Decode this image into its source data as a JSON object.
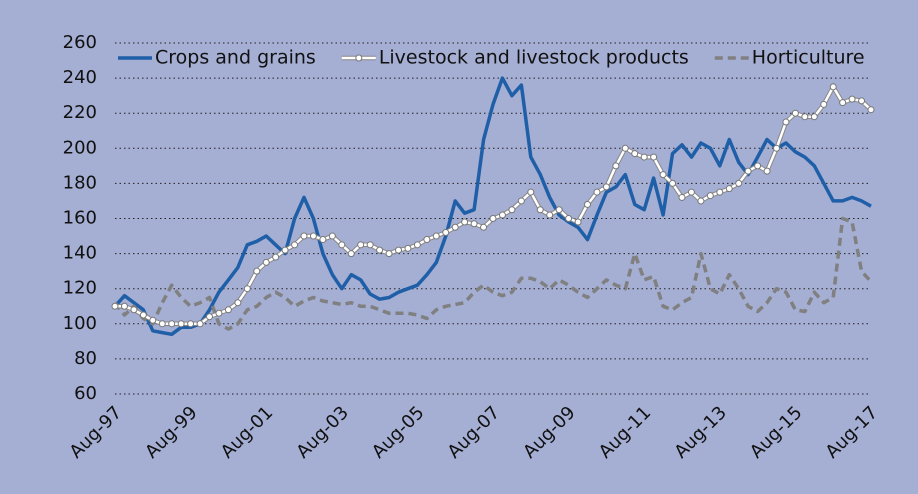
{
  "chart_data": {
    "type": "line",
    "categories": [
      "Aug-97",
      null,
      null,
      null,
      null,
      null,
      null,
      null,
      "Aug-99",
      null,
      null,
      null,
      null,
      null,
      null,
      null,
      "Aug-01",
      null,
      null,
      null,
      null,
      null,
      null,
      null,
      "Aug-03",
      null,
      null,
      null,
      null,
      null,
      null,
      null,
      "Aug-05",
      null,
      null,
      null,
      null,
      null,
      null,
      null,
      "Aug-07",
      null,
      null,
      null,
      null,
      null,
      null,
      null,
      "Aug-09",
      null,
      null,
      null,
      null,
      null,
      null,
      null,
      "Aug-11",
      null,
      null,
      null,
      null,
      null,
      null,
      null,
      "Aug-13",
      null,
      null,
      null,
      null,
      null,
      null,
      null,
      "Aug-15",
      null,
      null,
      null,
      null,
      null,
      null,
      null,
      "Aug-17"
    ],
    "series": [
      {
        "name": "Crops and grains",
        "color": "#1f5fa8",
        "values": [
          110,
          116,
          112,
          108,
          96,
          95,
          94,
          98,
          98,
          100,
          108,
          118,
          125,
          132,
          145,
          147,
          150,
          145,
          140,
          160,
          172,
          160,
          140,
          128,
          120,
          128,
          125,
          117,
          114,
          115,
          118,
          120,
          122,
          128,
          135,
          150,
          170,
          163,
          165,
          205,
          225,
          240,
          230,
          236,
          195,
          185,
          172,
          162,
          158,
          155,
          148,
          162,
          175,
          178,
          185,
          168,
          165,
          183,
          162,
          197,
          202,
          195,
          203,
          200,
          190,
          205,
          192,
          185,
          195,
          205,
          200,
          203,
          198,
          195,
          190,
          180,
          170,
          170,
          172,
          170,
          167
        ]
      },
      {
        "name": "Livestock and livestock products",
        "color": "#ffffff",
        "values": [
          110,
          110,
          108,
          105,
          102,
          100,
          100,
          100,
          100,
          100,
          104,
          106,
          108,
          112,
          120,
          130,
          135,
          138,
          142,
          145,
          150,
          150,
          148,
          150,
          145,
          140,
          145,
          145,
          142,
          140,
          142,
          143,
          145,
          148,
          150,
          152,
          155,
          158,
          157,
          155,
          160,
          162,
          165,
          170,
          175,
          165,
          162,
          165,
          160,
          158,
          168,
          175,
          178,
          190,
          200,
          197,
          195,
          195,
          185,
          180,
          172,
          175,
          170,
          173,
          175,
          177,
          180,
          187,
          190,
          187,
          200,
          215,
          220,
          218,
          218,
          225,
          235,
          226,
          228,
          227,
          222
        ]
      },
      {
        "name": "Horticulture",
        "color": "#808080",
        "values": [
          112,
          105,
          110,
          103,
          100,
          112,
          122,
          115,
          110,
          112,
          115,
          100,
          97,
          100,
          108,
          110,
          115,
          118,
          115,
          110,
          113,
          115,
          113,
          112,
          111,
          112,
          110,
          110,
          108,
          106,
          106,
          106,
          105,
          103,
          108,
          110,
          111,
          112,
          118,
          122,
          118,
          116,
          118,
          126,
          126,
          124,
          120,
          125,
          122,
          118,
          115,
          120,
          125,
          122,
          120,
          140,
          125,
          127,
          110,
          108,
          112,
          115,
          140,
          120,
          117,
          128,
          120,
          110,
          107,
          112,
          120,
          118,
          108,
          107,
          118,
          112,
          115,
          160,
          158,
          130,
          124
        ]
      }
    ],
    "ylim": [
      60,
      260
    ],
    "yticks": [
      60,
      80,
      100,
      120,
      140,
      160,
      180,
      200,
      220,
      240,
      260
    ],
    "grid": true
  }
}
